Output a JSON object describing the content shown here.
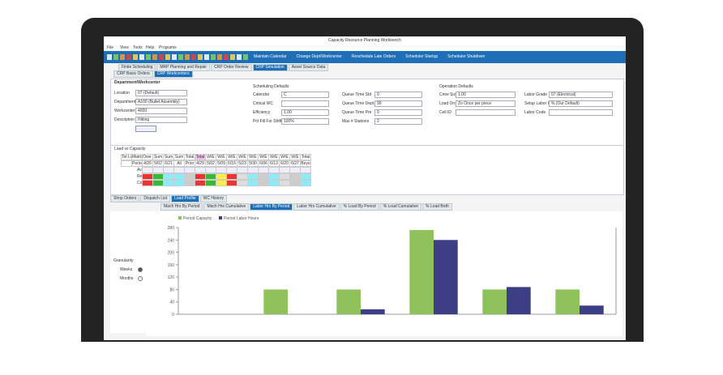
{
  "window": {
    "title": "Capacity Resource Planning Workbench"
  },
  "menu": [
    "File",
    "View",
    "Tools",
    "Help",
    "Programs"
  ],
  "toolbar": [
    "Maintain Calendar",
    "Change Dept/Workcenter",
    "Reschedule Late Orders",
    "Scheduler Startup",
    "Scheduler Shutdown"
  ],
  "tabs": [
    "Finite Scheduling",
    "MRP Planning and Repair",
    "CRP Order Review",
    "CRP Simulation",
    "Asset Source Data"
  ],
  "subtabs": [
    "CRP Basic Orders",
    "CRP Workcenters"
  ],
  "section": "Department/Workcenter",
  "dept_fields": [
    {
      "label": "Location",
      "value": "07 (Default)"
    },
    {
      "label": "Department",
      "value": "A100 (Bullet Assembly)"
    },
    {
      "label": "Workcenter",
      "value": "4000"
    },
    {
      "label": "Description",
      "value": "Hitting"
    }
  ],
  "scheduling": {
    "title": "Scheduling Defaults",
    "fields": [
      {
        "label": "Calendar",
        "value": "C"
      },
      {
        "label": "Critical WC",
        "value": ""
      },
      {
        "label": "Efficiency",
        "value": "1.00"
      },
      {
        "label": "Pct Fill For Shifting",
        "value": "100%"
      }
    ],
    "fields2": [
      {
        "label": "Queue Time Std",
        "value": "0"
      },
      {
        "label": "Queue Time Dept",
        "value": "99"
      },
      {
        "label": "Queue Time Pre",
        "value": "0"
      },
      {
        "label": "Max # Stations",
        "value": "2"
      }
    ]
  },
  "operation": {
    "title": "Operation Defaults",
    "fields": [
      {
        "label": "Crew Size",
        "value": "1.00"
      },
      {
        "label": "Load Order",
        "value": "Zo Once per piece"
      },
      {
        "label": "Cell ID",
        "value": ""
      }
    ],
    "fields2": [
      {
        "label": "Labor Grade",
        "value": "07 (Electrical)"
      },
      {
        "label": "Setup Labor Grade",
        "value": "% (Our Default)"
      },
      {
        "label": "Labor Code",
        "value": ""
      }
    ]
  },
  "load_grid": {
    "title": "Load vs Capacity",
    "headers": [
      "Tot Load",
      "Matrix",
      "Over Cap",
      "Sum",
      "Sum",
      "Sum",
      "Total",
      "Total",
      "W/E",
      "W/E",
      "W/E",
      "W/E",
      "W/E",
      "W/E",
      "W/E",
      "W/E",
      "W/E",
      "Total"
    ],
    "subheaders": [
      "",
      "Periods",
      "4/26",
      "5/02",
      "6/21",
      "All",
      "Prior",
      "4/29",
      "5/02",
      "5/09",
      "5/16",
      "5/23",
      "5/30",
      "6/06",
      "6/13",
      "6/20",
      "6/27",
      "Beyo"
    ],
    "rows": [
      "Avg",
      "Red",
      "Com"
    ]
  },
  "bottom_tabs": [
    "Shop Orders",
    "Dispatch List",
    "Load Profile",
    "WC History"
  ],
  "profile_tabs": [
    "Mach Hrs By Period",
    "Mach Hrs Cumulative",
    "Labor Hrs By Period",
    "Labor Hrs Cumulative",
    "% Load By Period",
    "% Load Cumulative",
    "% Load Both"
  ],
  "granularity": {
    "label": "Granularity",
    "options": [
      "Weeks",
      "Months"
    ]
  },
  "chart_data": {
    "type": "bar",
    "categories": [
      null,
      null,
      null,
      null,
      null,
      null
    ],
    "series": [
      {
        "name": "Period Capacity",
        "color": "#8fc25a",
        "values": [
          0,
          80,
          80,
          272,
          80,
          80
        ]
      },
      {
        "name": "Period Labor Hours",
        "color": "#3c3f86",
        "values": [
          0,
          0,
          16,
          240,
          88,
          28
        ]
      }
    ],
    "ylim": [
      0,
      280
    ],
    "yticks": [
      0,
      40,
      80,
      120,
      160,
      200,
      240,
      280
    ],
    "grid": false
  }
}
